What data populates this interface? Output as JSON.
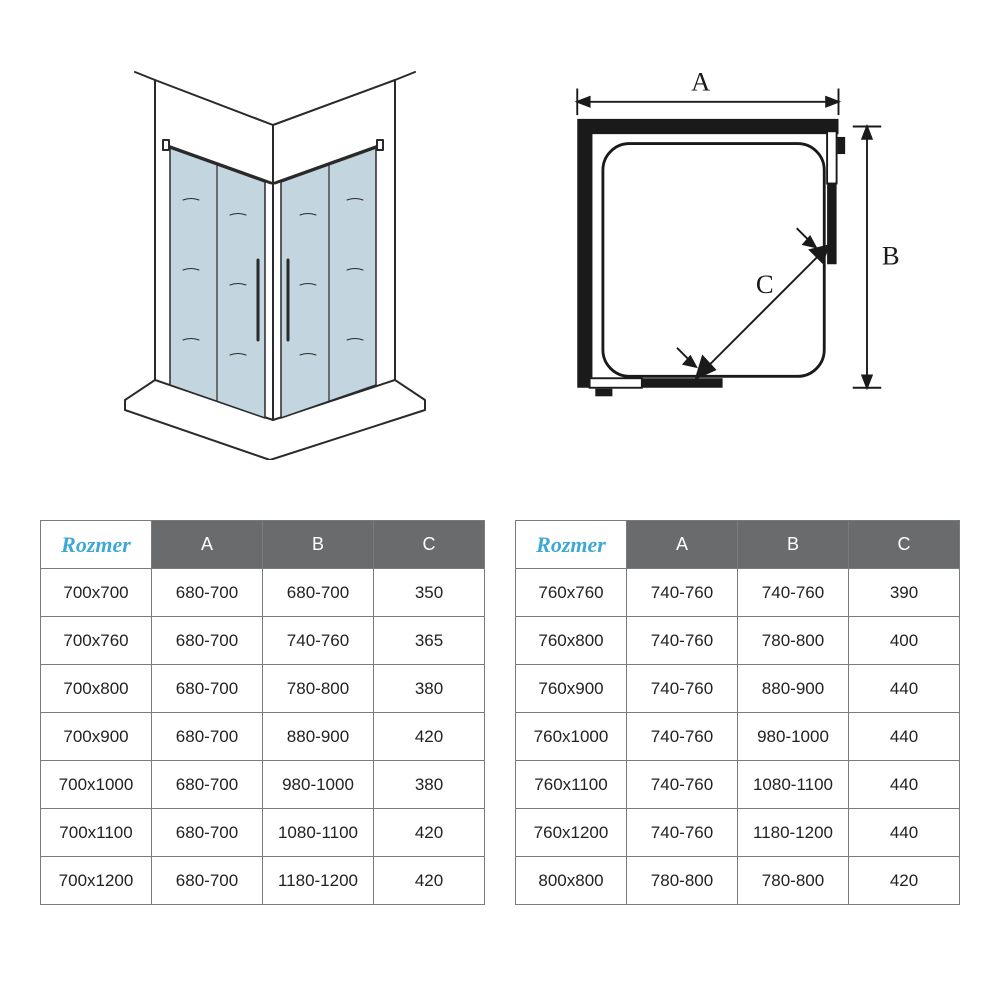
{
  "diagrams": {
    "perspective": {
      "glass_fill": "#c3d5df",
      "line_color": "#2a2a2a",
      "wall_line_width": 2
    },
    "plan": {
      "line_color": "#1a1a1a",
      "label_A": "A",
      "label_B": "B",
      "label_C": "C",
      "font_size": 28,
      "font_family": "serif"
    }
  },
  "tables": {
    "header_bg": "#6a6b6d",
    "header_fg": "#ffffff",
    "rozmer_color": "#3fa9d4",
    "rozmer_label": "Rozmer",
    "columns": [
      "A",
      "B",
      "C"
    ],
    "left": [
      {
        "size": "700x700",
        "a": "680-700",
        "b": "680-700",
        "c": "350"
      },
      {
        "size": "700x760",
        "a": "680-700",
        "b": "740-760",
        "c": "365"
      },
      {
        "size": "700x800",
        "a": "680-700",
        "b": "780-800",
        "c": "380"
      },
      {
        "size": "700x900",
        "a": "680-700",
        "b": "880-900",
        "c": "420"
      },
      {
        "size": "700x1000",
        "a": "680-700",
        "b": "980-1000",
        "c": "380"
      },
      {
        "size": "700x1100",
        "a": "680-700",
        "b": "1080-1100",
        "c": "420"
      },
      {
        "size": "700x1200",
        "a": "680-700",
        "b": "1180-1200",
        "c": "420"
      }
    ],
    "right": [
      {
        "size": "760x760",
        "a": "740-760",
        "b": "740-760",
        "c": "390"
      },
      {
        "size": "760x800",
        "a": "740-760",
        "b": "780-800",
        "c": "400"
      },
      {
        "size": "760x900",
        "a": "740-760",
        "b": "880-900",
        "c": "440"
      },
      {
        "size": "760x1000",
        "a": "740-760",
        "b": "980-1000",
        "c": "440"
      },
      {
        "size": "760x1100",
        "a": "740-760",
        "b": "1080-1100",
        "c": "440"
      },
      {
        "size": "760x1200",
        "a": "740-760",
        "b": "1180-1200",
        "c": "440"
      },
      {
        "size": "800x800",
        "a": "780-800",
        "b": "780-800",
        "c": "420"
      }
    ]
  }
}
